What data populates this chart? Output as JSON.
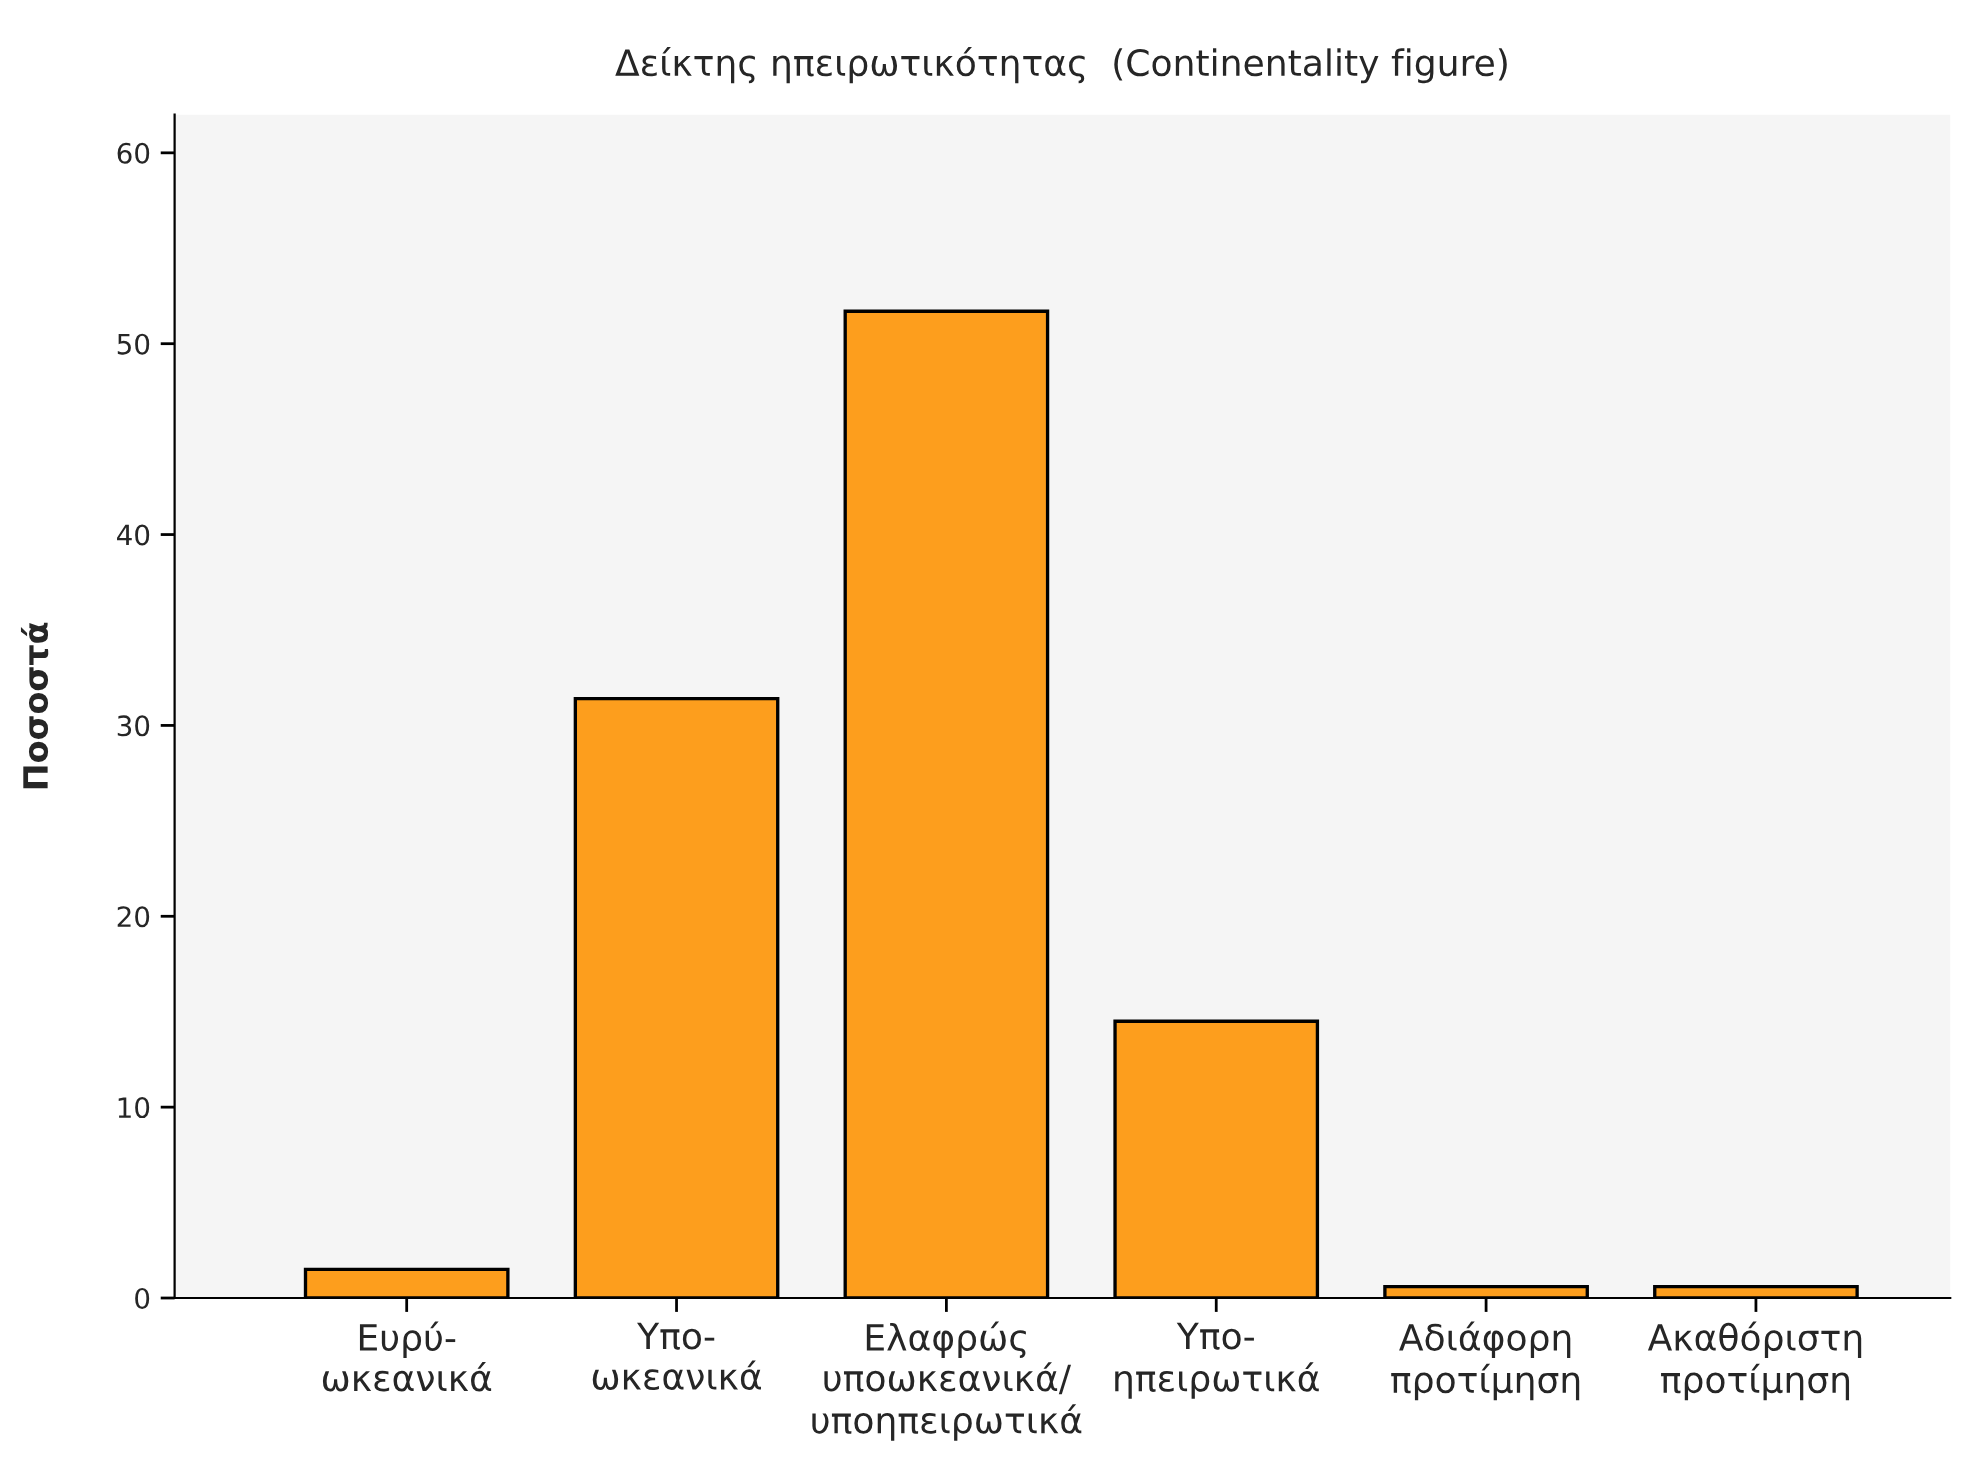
{
  "chart_data": {
    "type": "bar",
    "title": "Δείκτης ηπειρωτικότητας  (Continentality figure)",
    "ylabel": "Ποσοστά",
    "categories": [
      "Ευρύ-\nωκεανικά",
      "Υπο-\nωκεανικά",
      "Ελαφρώς\nυποωκεανικά/\nυποηπειρωτικά",
      "Υπο-\nηπειρωτικά",
      "Αδιάφορη\nπροτίμηση",
      "Ακαθόριστη\nπροτίμηση"
    ],
    "values": [
      1.5,
      31.4,
      51.7,
      14.5,
      0.6,
      0.6
    ],
    "color": "#fd9e1d",
    "ylim": [
      0,
      62
    ],
    "yticks": [
      0,
      10,
      20,
      30,
      40,
      50,
      60
    ],
    "grid": false,
    "legend": false
  }
}
